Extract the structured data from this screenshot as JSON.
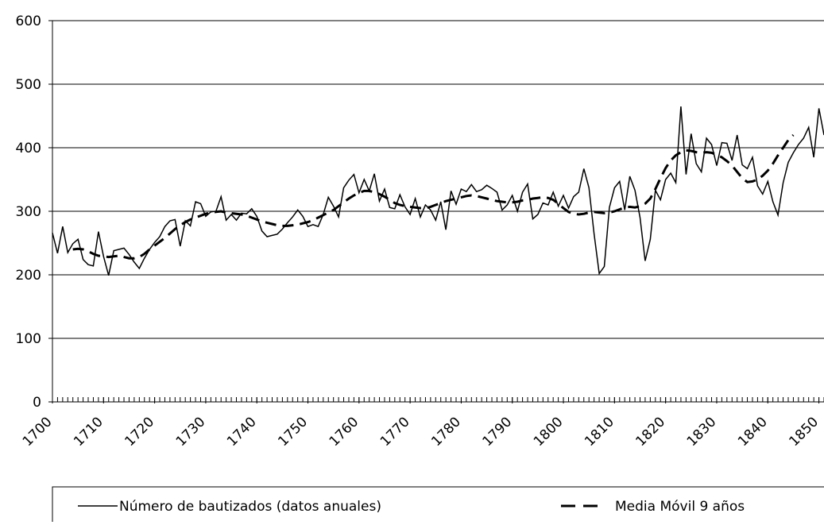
{
  "chart_data": {
    "type": "line",
    "x": [
      1700,
      1701,
      1702,
      1703,
      1704,
      1705,
      1706,
      1707,
      1708,
      1709,
      1710,
      1711,
      1712,
      1713,
      1714,
      1715,
      1716,
      1717,
      1718,
      1719,
      1720,
      1721,
      1722,
      1723,
      1724,
      1725,
      1726,
      1727,
      1728,
      1729,
      1730,
      1731,
      1732,
      1733,
      1734,
      1735,
      1736,
      1737,
      1738,
      1739,
      1740,
      1741,
      1742,
      1743,
      1744,
      1745,
      1746,
      1747,
      1748,
      1749,
      1750,
      1751,
      1752,
      1753,
      1754,
      1755,
      1756,
      1757,
      1758,
      1759,
      1760,
      1761,
      1762,
      1763,
      1764,
      1765,
      1766,
      1767,
      1768,
      1769,
      1770,
      1771,
      1772,
      1773,
      1774,
      1775,
      1776,
      1777,
      1778,
      1779,
      1780,
      1781,
      1782,
      1783,
      1784,
      1785,
      1786,
      1787,
      1788,
      1789,
      1790,
      1791,
      1792,
      1793,
      1794,
      1795,
      1796,
      1797,
      1798,
      1799,
      1800,
      1801,
      1802,
      1803,
      1804,
      1805,
      1806,
      1807,
      1808,
      1809,
      1810,
      1811,
      1812,
      1813,
      1814,
      1815,
      1816,
      1817,
      1818,
      1819,
      1820,
      1821,
      1822,
      1823,
      1824,
      1825,
      1826,
      1827,
      1828,
      1829,
      1830,
      1831,
      1832,
      1833,
      1834,
      1835,
      1836,
      1837,
      1838,
      1839,
      1840,
      1841,
      1842,
      1843,
      1844,
      1845,
      1846,
      1847,
      1848,
      1849,
      1850,
      1851
    ],
    "series": [
      {
        "name": "Número de bautizados (datos anuales)",
        "color": "#000000",
        "dash": false,
        "values": [
          266,
          234,
          276,
          235,
          249,
          256,
          224,
          216,
          214,
          268,
          229,
          199,
          238,
          240,
          242,
          232,
          220,
          210,
          226,
          240,
          251,
          260,
          276,
          285,
          287,
          245,
          285,
          277,
          315,
          312,
          292,
          299,
          300,
          323,
          286,
          295,
          286,
          297,
          296,
          304,
          292,
          269,
          260,
          262,
          264,
          272,
          282,
          291,
          302,
          292,
          276,
          279,
          276,
          295,
          322,
          308,
          291,
          337,
          349,
          358,
          329,
          350,
          332,
          359,
          316,
          335,
          306,
          304,
          326,
          307,
          295,
          320,
          291,
          310,
          302,
          286,
          315,
          271,
          332,
          311,
          335,
          331,
          342,
          331,
          334,
          341,
          336,
          330,
          302,
          310,
          325,
          300,
          330,
          343,
          288,
          295,
          313,
          310,
          330,
          308,
          325,
          305,
          323,
          330,
          367,
          337,
          265,
          202,
          213,
          306,
          337,
          347,
          302,
          355,
          333,
          290,
          222,
          256,
          333,
          318,
          350,
          360,
          345,
          465,
          358,
          422,
          375,
          362,
          415,
          405,
          372,
          408,
          407,
          380,
          420,
          373,
          367,
          385,
          340,
          327,
          347,
          315,
          294,
          345,
          377,
          392,
          405,
          415,
          432,
          385,
          462,
          420
        ]
      },
      {
        "name": "Media Móvil 9 años",
        "color": "#000000",
        "dash": true,
        "values": [
          null,
          null,
          null,
          null,
          240,
          241,
          240,
          237,
          233,
          230,
          229,
          228,
          229,
          230,
          228,
          226,
          226,
          228,
          233,
          240,
          246,
          252,
          258,
          265,
          272,
          278,
          283,
          287,
          290,
          293,
          296,
          298,
          299,
          300,
          298,
          297,
          296,
          295,
          293,
          290,
          287,
          284,
          282,
          280,
          278,
          277,
          277,
          278,
          279,
          281,
          283,
          286,
          290,
          294,
          298,
          302,
          308,
          314,
          320,
          325,
          329,
          332,
          332,
          330,
          327,
          323,
          318,
          313,
          310,
          308,
          307,
          306,
          305,
          305,
          307,
          310,
          313,
          316,
          318,
          320,
          322,
          324,
          325,
          324,
          322,
          320,
          318,
          316,
          315,
          314,
          314,
          315,
          317,
          318,
          320,
          321,
          322,
          321,
          318,
          312,
          305,
          299,
          296,
          295,
          296,
          298,
          299,
          298,
          297,
          298,
          300,
          303,
          306,
          307,
          306,
          308,
          312,
          320,
          335,
          352,
          368,
          380,
          388,
          393,
          396,
          395,
          393,
          392,
          393,
          392,
          389,
          385,
          379,
          372,
          362,
          352,
          346,
          347,
          350,
          356,
          364,
          375,
          388,
          400,
          412,
          420,
          null,
          null,
          null,
          null,
          null,
          null
        ]
      }
    ],
    "xlim": [
      1700,
      1851
    ],
    "xticks": [
      1700,
      1710,
      1720,
      1730,
      1740,
      1750,
      1760,
      1770,
      1780,
      1790,
      1800,
      1810,
      1820,
      1830,
      1840,
      1850
    ],
    "ylim": [
      0,
      600
    ],
    "yticks": [
      0,
      100,
      200,
      300,
      400,
      500,
      600
    ],
    "grid": true
  }
}
